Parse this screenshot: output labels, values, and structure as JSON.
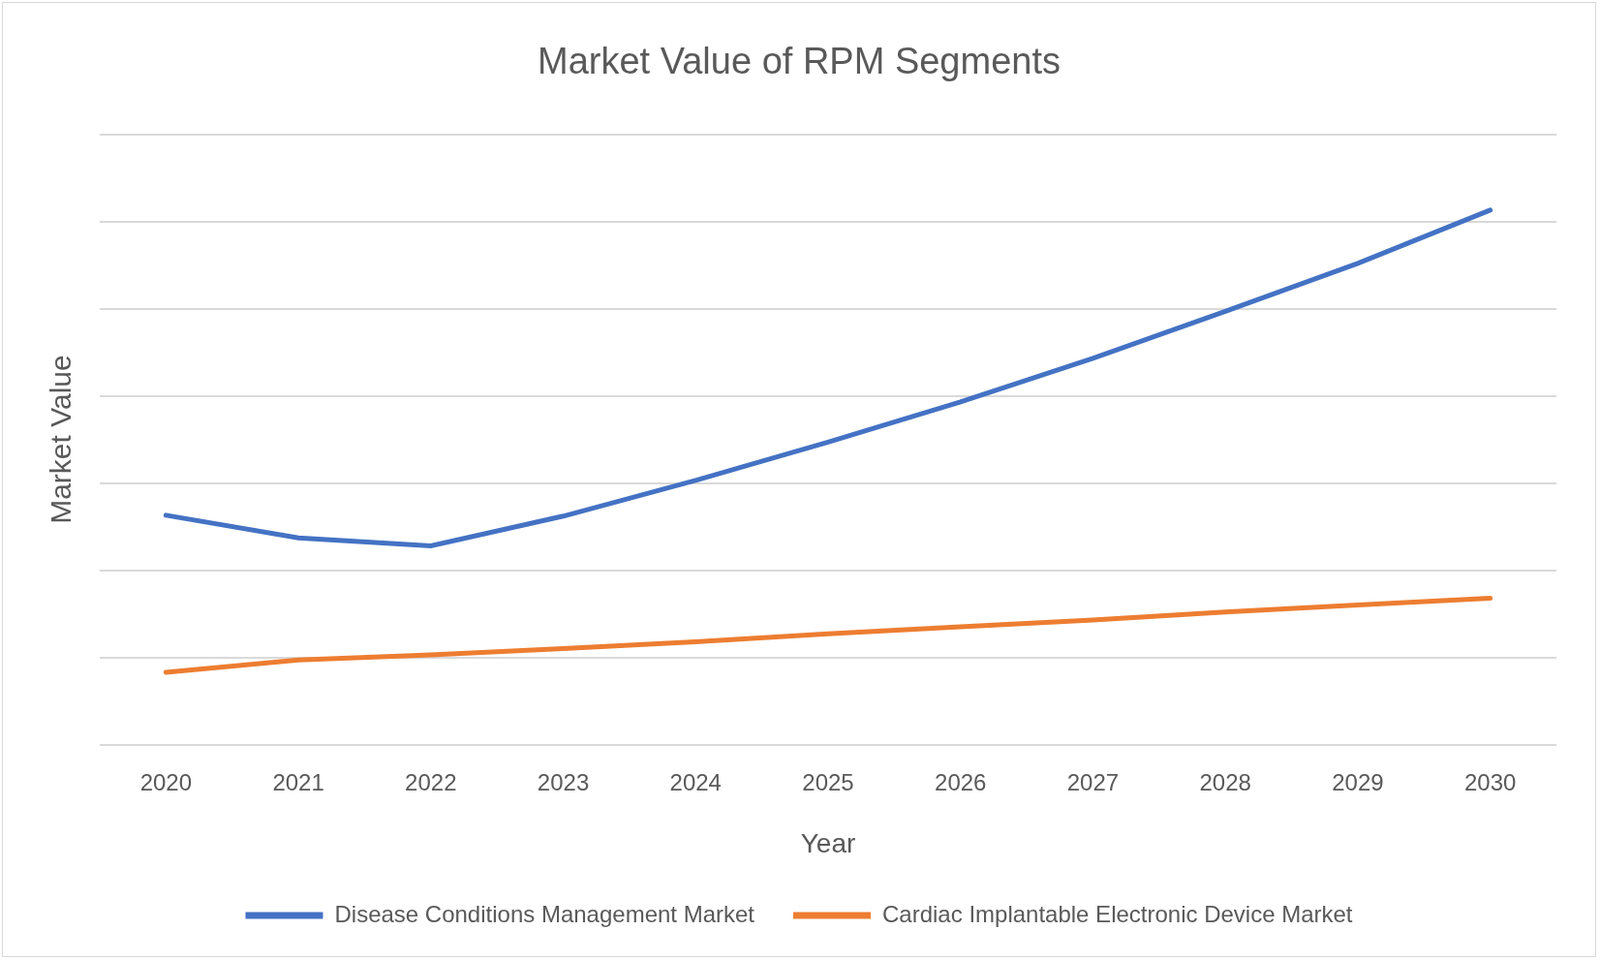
{
  "chart_data": {
    "type": "line",
    "title": "Market Value of RPM Segments",
    "x_label": "Year",
    "y_label": "Market Value",
    "categories": [
      "2020",
      "2021",
      "2022",
      "2023",
      "2024",
      "2025",
      "2026",
      "2027",
      "2028",
      "2029",
      "2030"
    ],
    "series": [
      {
        "name": "Disease Conditions Management Market",
        "color": "#4472c4",
        "marker": "none",
        "line_style": "solid",
        "values": [
          2.63,
          2.37,
          2.28,
          2.62,
          3.03,
          3.47,
          3.93,
          4.43,
          4.97,
          5.52,
          6.13
        ]
      },
      {
        "name": "Cardiac Implantable Electronic Device Market",
        "color": "#ed7d31",
        "marker": "none",
        "line_style": "solid",
        "values": [
          0.83,
          0.97,
          1.03,
          1.1,
          1.18,
          1.27,
          1.35,
          1.43,
          1.52,
          1.6,
          1.68
        ]
      }
    ],
    "ylim": [
      0,
      7
    ],
    "yticks": [
      0,
      1,
      2,
      3,
      4,
      5,
      6,
      7
    ],
    "grid": true,
    "legend": "bottom",
    "tick_labels": "x"
  }
}
